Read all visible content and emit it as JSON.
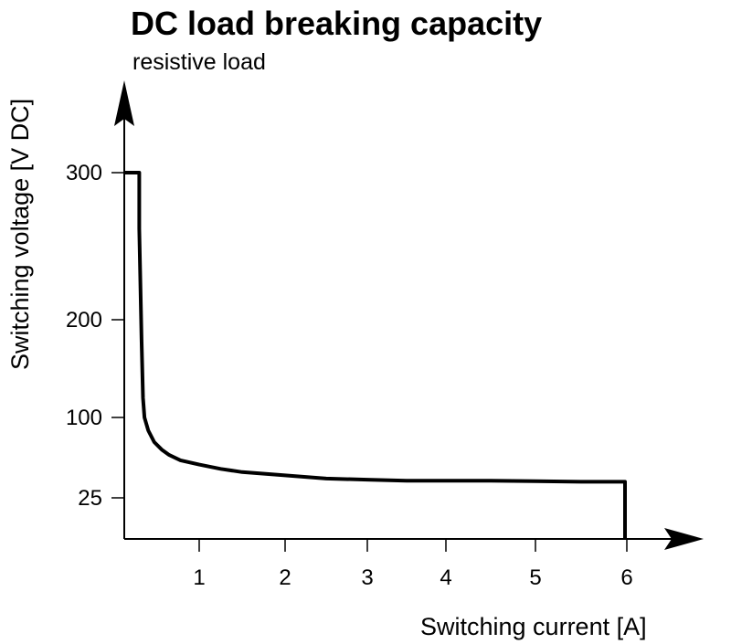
{
  "chart_data": {
    "type": "line",
    "title": "DC load breaking capacity",
    "subtitle": "resistive load",
    "xlabel": "Switching current [A]",
    "ylabel": "Switching voltage [V DC]",
    "x_ticks": [
      1,
      2,
      3,
      4,
      5,
      6
    ],
    "y_ticks": [
      25,
      100,
      200,
      300
    ],
    "grid": false,
    "series": [
      {
        "x": [
          0.0,
          0.2,
          0.2,
          0.23,
          0.25,
          0.27,
          0.32,
          0.4,
          0.5,
          0.6,
          0.75,
          1.0,
          1.25,
          1.5,
          2.0,
          2.5,
          3.0,
          3.5,
          4.0,
          4.5,
          5.0,
          5.5,
          5.98,
          5.98
        ],
        "y": [
          300,
          300,
          262,
          180,
          120,
          100,
          88,
          77,
          70,
          65,
          60,
          56,
          52,
          49,
          46,
          43,
          42,
          41,
          41,
          41,
          40.5,
          40,
          40,
          0
        ],
        "color": "#000000"
      }
    ]
  }
}
